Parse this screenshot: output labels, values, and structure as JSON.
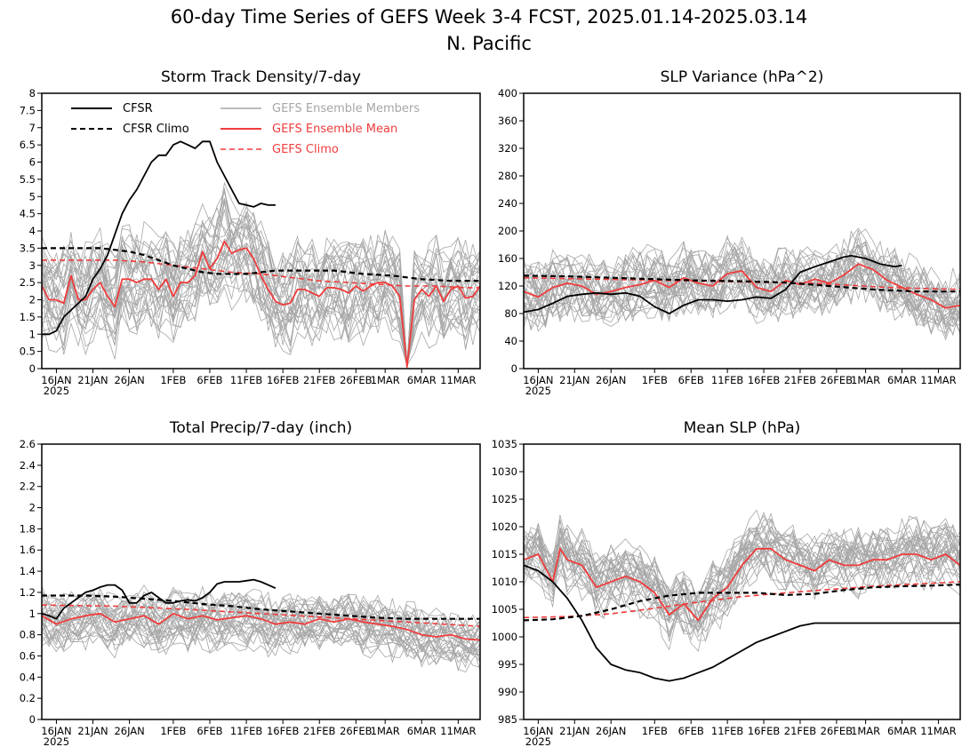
{
  "figure": {
    "title_line1": "60-day Time Series of GEFS Week 3-4 FCST, 2025.01.14-2025.03.14",
    "title_line2": "N. Pacific"
  },
  "x_axis": {
    "tick_labels": [
      "16JAN",
      "21JAN",
      "26JAN",
      "1FEB",
      "6FEB",
      "11FEB",
      "16FEB",
      "21FEB",
      "26FEB",
      "1MAR",
      "6MAR",
      "11MAR"
    ],
    "tick_days": [
      2,
      7,
      12,
      18,
      23,
      28,
      33,
      38,
      43,
      47,
      52,
      57
    ],
    "year_label": "2025",
    "start_day": 0,
    "end_day": 60
  },
  "legend": {
    "cfsr": "CFSR",
    "cfsr_climo": "CFSR Climo",
    "ens_members": "GEFS Ensemble Members",
    "ens_mean": "GEFS Ensemble Mean",
    "gefs_climo": "GEFS Climo"
  },
  "colors": {
    "cfsr": "#000000",
    "members": "#a6a6a6",
    "ens_mean": "#f03c3c",
    "gefs_climo": "#f03c3c",
    "legend_members_text": "#a6a6a6"
  },
  "chart_data": [
    {
      "type": "line",
      "title": "Storm Track Density/7-day",
      "ylim": [
        0,
        8
      ],
      "yticks": [
        0,
        0.5,
        1,
        1.5,
        2,
        2.5,
        3,
        3.5,
        4,
        4.5,
        5,
        5.5,
        6,
        6.5,
        7,
        7.5,
        8
      ],
      "ytick_labels": [
        "0",
        "0.5",
        "1",
        "1.5",
        "2",
        "2.5",
        "3",
        "3.5",
        "4",
        "4.5",
        "5",
        "5.5",
        "6",
        "6.5",
        "7",
        "7.5",
        "8"
      ],
      "members": {
        "count": 31,
        "spread": 1.0,
        "noise": 0.7
      },
      "series": [
        {
          "name": "CFSR",
          "x": [
            0,
            1,
            2,
            3,
            4,
            5,
            6,
            7,
            8,
            9,
            10,
            11,
            12,
            13,
            14,
            15,
            16,
            17,
            18,
            19,
            20,
            21,
            22,
            23,
            24,
            25,
            26,
            27,
            28,
            29,
            30,
            31,
            32
          ],
          "values": [
            1.0,
            1.0,
            1.1,
            1.5,
            1.7,
            1.9,
            2.1,
            2.6,
            2.9,
            3.3,
            3.9,
            4.5,
            4.9,
            5.2,
            5.6,
            6.0,
            6.2,
            6.2,
            6.5,
            6.6,
            6.5,
            6.4,
            6.6,
            6.6,
            6.0,
            5.6,
            5.2,
            4.8,
            4.75,
            4.7,
            4.8,
            4.75,
            4.75
          ]
        },
        {
          "name": "CFSR Climo",
          "x": [
            0,
            4,
            8,
            10,
            12,
            14,
            16,
            18,
            20,
            22,
            24,
            26,
            28,
            30,
            32,
            34,
            36,
            40,
            44,
            48,
            52,
            56,
            60
          ],
          "values": [
            3.5,
            3.5,
            3.5,
            3.45,
            3.4,
            3.3,
            3.15,
            3.0,
            2.9,
            2.8,
            2.75,
            2.75,
            2.75,
            2.8,
            2.85,
            2.85,
            2.85,
            2.85,
            2.75,
            2.7,
            2.6,
            2.55,
            2.55
          ]
        },
        {
          "name": "GEFS Ensemble Mean",
          "x": [
            0,
            1,
            2,
            3,
            4,
            5,
            6,
            7,
            8,
            9,
            10,
            11,
            12,
            13,
            14,
            15,
            16,
            17,
            18,
            19,
            20,
            21,
            22,
            23,
            24,
            25,
            26,
            27,
            28,
            29,
            30,
            31,
            32,
            33,
            34,
            35,
            36,
            37,
            38,
            39,
            40,
            41,
            42,
            43,
            44,
            45,
            46,
            47,
            48,
            49,
            50,
            51,
            52,
            53,
            54,
            55,
            56,
            57,
            58,
            59,
            60
          ],
          "values": [
            2.4,
            2.0,
            2.0,
            1.9,
            2.7,
            2.0,
            2.0,
            2.3,
            2.5,
            2.1,
            1.8,
            2.6,
            2.6,
            2.5,
            2.6,
            2.6,
            2.3,
            2.6,
            2.1,
            2.5,
            2.5,
            2.7,
            3.4,
            2.9,
            3.2,
            3.7,
            3.35,
            3.45,
            3.5,
            3.2,
            2.7,
            2.3,
            1.95,
            1.85,
            1.9,
            2.3,
            2.3,
            2.2,
            2.1,
            2.35,
            2.35,
            2.3,
            2.2,
            2.4,
            2.25,
            2.4,
            2.5,
            2.5,
            2.4,
            2.1,
            0.05,
            2.0,
            2.3,
            2.1,
            2.4,
            1.95,
            2.3,
            2.4,
            2.05,
            2.1,
            2.4
          ]
        },
        {
          "name": "GEFS Climo",
          "x": [
            0,
            6,
            10,
            14,
            18,
            22,
            26,
            30,
            34,
            38,
            42,
            46,
            50,
            54,
            58,
            60
          ],
          "values": [
            3.15,
            3.15,
            3.15,
            3.1,
            3.0,
            2.9,
            2.8,
            2.75,
            2.65,
            2.55,
            2.5,
            2.45,
            2.4,
            2.4,
            2.35,
            2.35
          ]
        }
      ]
    },
    {
      "type": "line",
      "title": "SLP Variance (hPa^2)",
      "ylim": [
        0,
        400
      ],
      "yticks": [
        0,
        40,
        80,
        120,
        160,
        200,
        240,
        280,
        320,
        360,
        400
      ],
      "ytick_labels": [
        "0",
        "40",
        "80",
        "120",
        "160",
        "200",
        "240",
        "280",
        "320",
        "360",
        "400"
      ],
      "members": {
        "count": 31,
        "spread": 30,
        "noise": 28
      },
      "series": [
        {
          "name": "CFSR",
          "x": [
            0,
            2,
            4,
            6,
            8,
            10,
            12,
            14,
            16,
            18,
            20,
            22,
            24,
            26,
            28,
            30,
            32,
            34,
            36,
            38,
            40,
            42,
            44,
            45,
            47,
            49,
            51,
            52
          ],
          "values": [
            82,
            86,
            95,
            105,
            108,
            110,
            108,
            110,
            105,
            90,
            80,
            92,
            100,
            100,
            98,
            100,
            104,
            102,
            115,
            140,
            148,
            155,
            162,
            164,
            160,
            152,
            148,
            150
          ]
        },
        {
          "name": "CFSR Climo",
          "x": [
            0,
            6,
            12,
            18,
            24,
            30,
            36,
            42,
            48,
            54,
            60
          ],
          "values": [
            135,
            134,
            132,
            130,
            128,
            127,
            125,
            120,
            115,
            112,
            112
          ]
        },
        {
          "name": "GEFS Ensemble Mean",
          "x": [
            0,
            2,
            4,
            6,
            8,
            10,
            12,
            14,
            16,
            18,
            20,
            22,
            24,
            26,
            28,
            30,
            32,
            34,
            36,
            38,
            40,
            42,
            44,
            46,
            48,
            50,
            52,
            54,
            56,
            58,
            60
          ],
          "values": [
            112,
            104,
            118,
            124,
            120,
            108,
            112,
            118,
            122,
            128,
            118,
            132,
            124,
            120,
            138,
            142,
            118,
            112,
            128,
            122,
            130,
            124,
            136,
            152,
            144,
            128,
            118,
            108,
            100,
            88,
            92
          ]
        },
        {
          "name": "GEFS Climo",
          "x": [
            0,
            10,
            20,
            30,
            40,
            50,
            60
          ],
          "values": [
            132,
            130,
            128,
            126,
            124,
            118,
            115
          ]
        }
      ]
    },
    {
      "type": "line",
      "title": "Total Precip/7-day (inch)",
      "ylim": [
        0,
        2.6
      ],
      "yticks": [
        0,
        0.2,
        0.4,
        0.6,
        0.8,
        1,
        1.2,
        1.4,
        1.6,
        1.8,
        2,
        2.2,
        2.4,
        2.6
      ],
      "ytick_labels": [
        "0",
        "0.2",
        "0.4",
        "0.6",
        "0.8",
        "1",
        "1.2",
        "1.4",
        "1.6",
        "1.8",
        "2",
        "2.2",
        "2.4",
        "2.6"
      ],
      "members": {
        "count": 31,
        "spread": 0.2,
        "noise": 0.14
      },
      "series": [
        {
          "name": "CFSR",
          "x": [
            0,
            1,
            2,
            3,
            4,
            5,
            6,
            7,
            8,
            9,
            10,
            11,
            12,
            13,
            14,
            15,
            16,
            17,
            18,
            19,
            20,
            21,
            22,
            23,
            24,
            25,
            26,
            27,
            28,
            29,
            30,
            31,
            32
          ],
          "values": [
            1.0,
            0.98,
            0.95,
            1.05,
            1.1,
            1.15,
            1.2,
            1.22,
            1.25,
            1.27,
            1.27,
            1.22,
            1.1,
            1.1,
            1.17,
            1.2,
            1.15,
            1.1,
            1.1,
            1.12,
            1.13,
            1.12,
            1.15,
            1.2,
            1.28,
            1.3,
            1.3,
            1.3,
            1.31,
            1.32,
            1.3,
            1.27,
            1.24
          ]
        },
        {
          "name": "CFSR Climo",
          "x": [
            0,
            6,
            10,
            14,
            18,
            22,
            26,
            30,
            34,
            38,
            42,
            46,
            50,
            54,
            58,
            60
          ],
          "values": [
            1.17,
            1.17,
            1.16,
            1.14,
            1.12,
            1.09,
            1.07,
            1.04,
            1.02,
            1.0,
            0.98,
            0.96,
            0.95,
            0.95,
            0.95,
            0.95
          ]
        },
        {
          "name": "GEFS Ensemble Mean",
          "x": [
            0,
            2,
            4,
            6,
            8,
            10,
            12,
            14,
            16,
            18,
            20,
            22,
            24,
            26,
            28,
            30,
            32,
            34,
            36,
            38,
            40,
            42,
            44,
            46,
            48,
            50,
            52,
            54,
            56,
            58,
            60
          ],
          "values": [
            0.98,
            0.9,
            0.95,
            0.98,
            1.0,
            0.92,
            0.95,
            0.98,
            0.9,
            1.0,
            0.95,
            0.98,
            0.94,
            0.96,
            0.98,
            0.95,
            0.9,
            0.92,
            0.9,
            0.95,
            0.92,
            0.95,
            0.92,
            0.9,
            0.88,
            0.85,
            0.8,
            0.78,
            0.8,
            0.76,
            0.75
          ]
        },
        {
          "name": "GEFS Climo",
          "x": [
            0,
            10,
            20,
            30,
            40,
            50,
            60
          ],
          "values": [
            1.08,
            1.07,
            1.04,
            1.0,
            0.96,
            0.92,
            0.88
          ]
        }
      ]
    },
    {
      "type": "line",
      "title": "Mean SLP (hPa)",
      "ylim": [
        985,
        1035
      ],
      "yticks": [
        985,
        990,
        995,
        1000,
        1005,
        1010,
        1015,
        1020,
        1025,
        1030,
        1035
      ],
      "ytick_labels": [
        "985",
        "990",
        "995",
        "1000",
        "1005",
        "1010",
        "1015",
        "1020",
        "1025",
        "1030",
        "1035"
      ],
      "members": {
        "count": 31,
        "spread": 4.0,
        "noise": 3.2
      },
      "series": [
        {
          "name": "CFSR",
          "x": [
            0,
            2,
            4,
            6,
            8,
            10,
            12,
            14,
            16,
            18,
            20,
            22,
            24,
            26,
            28,
            30,
            32,
            34,
            36,
            38,
            40,
            42,
            44,
            45,
            46,
            47,
            48,
            49,
            50,
            51,
            52,
            53,
            54,
            55,
            56,
            57,
            58,
            59,
            60
          ],
          "values": [
            1013,
            1012,
            1010,
            1007,
            1003,
            998,
            995,
            994,
            993.5,
            992.5,
            992,
            992.5,
            993.5,
            994.5,
            996,
            997.5,
            999,
            1000,
            1001,
            1002,
            1002.5,
            1002.5,
            1002.5,
            1002.5,
            1002.5,
            1002.5,
            1002.5,
            1002.5,
            1002.5,
            1002.5,
            1002.5,
            1002.5,
            1002.5,
            1002.5,
            1002.5,
            1002.5,
            1002.5,
            1002.5,
            1002.5
          ]
        },
        {
          "name": "CFSR Climo",
          "x": [
            0,
            4,
            8,
            12,
            16,
            20,
            24,
            28,
            30,
            32,
            34,
            36,
            40,
            44,
            48,
            52,
            56,
            60
          ],
          "values": [
            1003,
            1003.2,
            1003.8,
            1005,
            1006.5,
            1007.5,
            1008,
            1008,
            1008,
            1008,
            1007.8,
            1007.6,
            1007.8,
            1008.5,
            1009,
            1009.2,
            1009.3,
            1009.5
          ]
        },
        {
          "name": "GEFS Ensemble Mean",
          "x": [
            0,
            2,
            4,
            5,
            6,
            8,
            10,
            12,
            14,
            16,
            18,
            20,
            22,
            24,
            26,
            28,
            30,
            32,
            34,
            36,
            38,
            40,
            42,
            44,
            46,
            48,
            50,
            52,
            54,
            56,
            58,
            60
          ],
          "values": [
            1014,
            1015,
            1010,
            1016,
            1014,
            1013,
            1009,
            1010,
            1011,
            1010,
            1008,
            1004,
            1006,
            1003,
            1007,
            1009,
            1013,
            1016,
            1016,
            1014,
            1013,
            1012,
            1014,
            1013,
            1013,
            1014,
            1014,
            1015,
            1015,
            1014,
            1015,
            1013
          ]
        },
        {
          "name": "GEFS Climo",
          "x": [
            0,
            6,
            12,
            18,
            24,
            30,
            36,
            42,
            48,
            54,
            60
          ],
          "values": [
            1003.5,
            1003.7,
            1004.2,
            1005.2,
            1006.3,
            1007.3,
            1008,
            1008.6,
            1009.2,
            1009.6,
            1010
          ]
        }
      ]
    }
  ]
}
